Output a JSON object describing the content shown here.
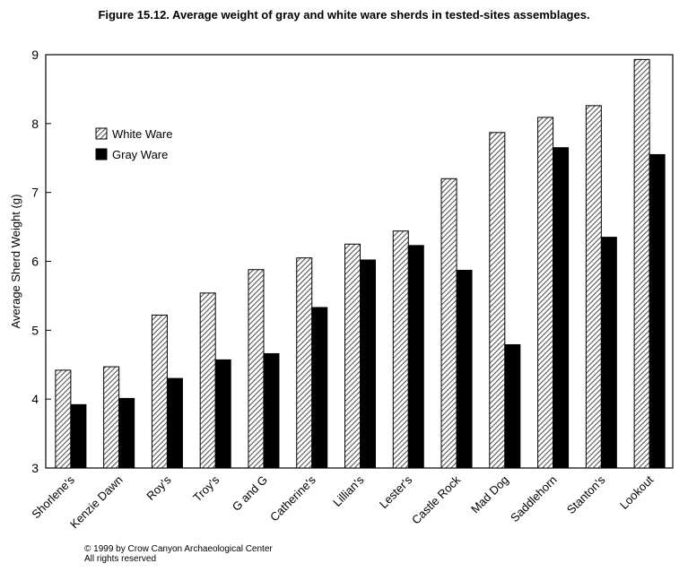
{
  "chart_data": {
    "type": "bar",
    "title": "Figure 15.12.  Average weight of gray and white ware sherds in tested-sites assemblages.",
    "xlabel": "",
    "ylabel": "Average Sherd Weight (g)",
    "ylim": [
      3,
      9
    ],
    "yticks": [
      "3",
      "4",
      "5",
      "6",
      "7",
      "8",
      "9"
    ],
    "grid": false,
    "legend_position": "top-left",
    "categories": [
      "Shorlene's",
      "Kenzie Dawn",
      "Roy's",
      "Troy's",
      "G and G",
      "Catherine's",
      "Lillian's",
      "Lester's",
      "Castle Rock",
      "Mad Dog",
      "Saddlehorn",
      "Stanton's",
      "Lookout"
    ],
    "series": [
      {
        "name": "White Ware",
        "pattern": "hatched",
        "values": [
          4.42,
          4.47,
          5.22,
          5.54,
          5.88,
          6.05,
          6.25,
          6.44,
          7.2,
          7.87,
          8.09,
          8.26,
          8.93
        ]
      },
      {
        "name": "Gray Ware",
        "color": "#000000",
        "values": [
          3.92,
          4.01,
          4.3,
          4.57,
          4.66,
          5.33,
          6.02,
          6.23,
          5.87,
          4.79,
          7.65,
          6.35,
          7.55
        ]
      }
    ]
  },
  "footer": {
    "copyright": "© 1999 by Crow Canyon Archaeological Center",
    "rights": "All rights reserved"
  }
}
